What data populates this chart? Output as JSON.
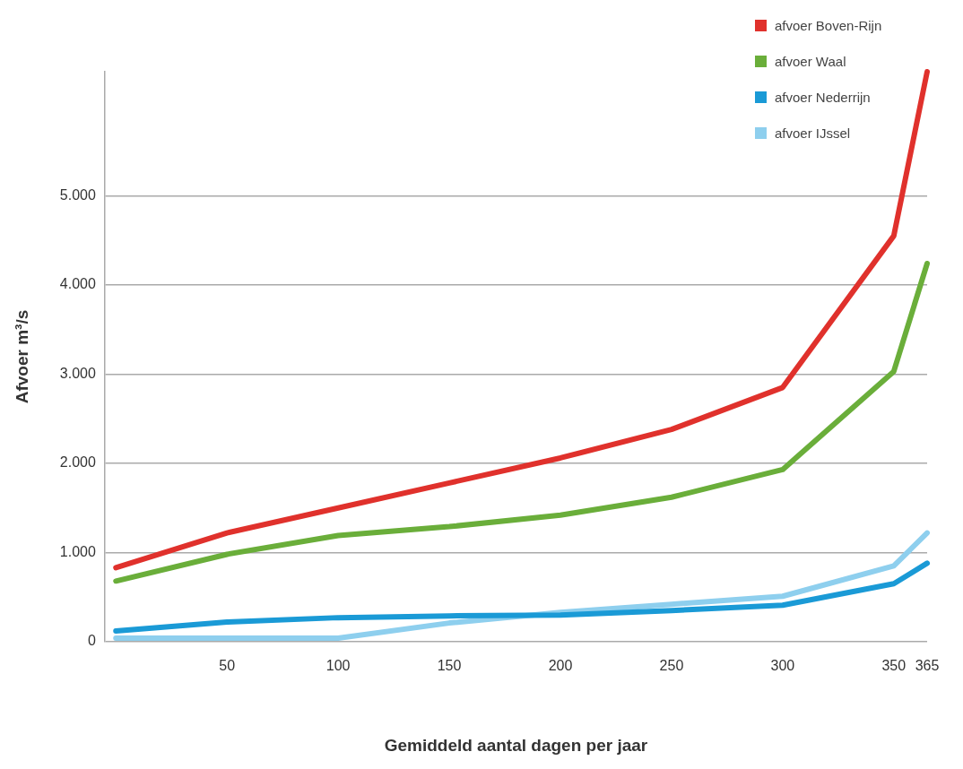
{
  "chart_data": {
    "type": "line",
    "xlabel": "Gemiddeld aantal dagen per jaar",
    "ylabel": "Afvoer m³/s",
    "x": [
      0,
      50,
      100,
      150,
      200,
      250,
      300,
      350,
      365
    ],
    "series": [
      {
        "name": "afvoer Boven-Rijn",
        "color": "#e0312c",
        "values": [
          830,
          1220,
          1500,
          1780,
          2060,
          2380,
          2850,
          4550,
          6390
        ]
      },
      {
        "name": "afvoer Waal",
        "color": "#6aae3a",
        "values": [
          680,
          980,
          1190,
          1290,
          1420,
          1620,
          1930,
          3030,
          4240
        ]
      },
      {
        "name": "afvoer Nederrijn",
        "color": "#1a9ad6",
        "values": [
          120,
          220,
          270,
          290,
          300,
          350,
          410,
          650,
          880
        ]
      },
      {
        "name": "afvoer IJssel",
        "color": "#8ecfee",
        "values": [
          40,
          40,
          40,
          210,
          330,
          420,
          510,
          850,
          1220
        ]
      }
    ],
    "xlim": [
      -5,
      365
    ],
    "ylim": [
      0,
      6390
    ],
    "xticks": [
      50,
      100,
      150,
      200,
      250,
      300,
      350,
      365
    ],
    "yticks": [
      0,
      {
        "value": 1000,
        "label": "1.000"
      },
      {
        "value": 2000,
        "label": "2.000"
      },
      {
        "value": 3000,
        "label": "3.000"
      },
      {
        "value": 4000,
        "label": "4.000"
      },
      {
        "value": 5000,
        "label": "5.000"
      }
    ],
    "grid": "y",
    "legend": "top right",
    "marker": "none",
    "line_style": "solid"
  }
}
